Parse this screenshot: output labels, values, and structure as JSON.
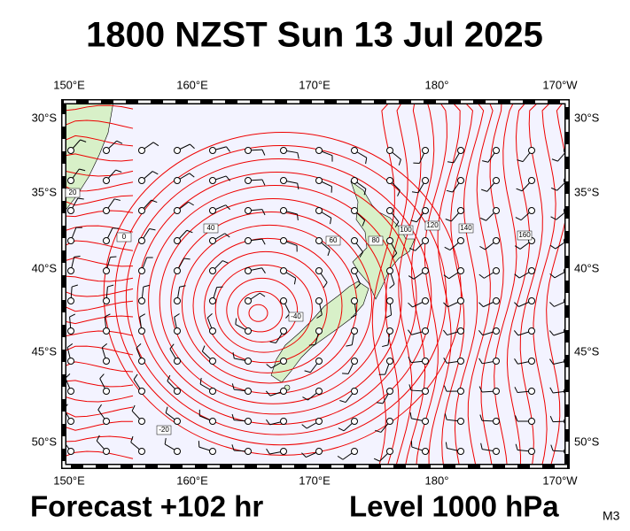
{
  "header": {
    "title": "1800 NZST Sun 13 Jul 2025"
  },
  "map": {
    "lon_labels": [
      "150°E",
      "160°E",
      "170°E",
      "180°",
      "170°W"
    ],
    "lat_labels": [
      "30°S",
      "35°S",
      "40°S",
      "45°S",
      "50°S"
    ],
    "contour_labels": [
      "20",
      "0",
      "-20",
      "40",
      "60",
      "80",
      "100",
      "120",
      "140",
      "160",
      "-40"
    ]
  },
  "footer": {
    "forecast": "Forecast +102 hr",
    "level": "Level 1000 hPa",
    "model": "M3"
  }
}
